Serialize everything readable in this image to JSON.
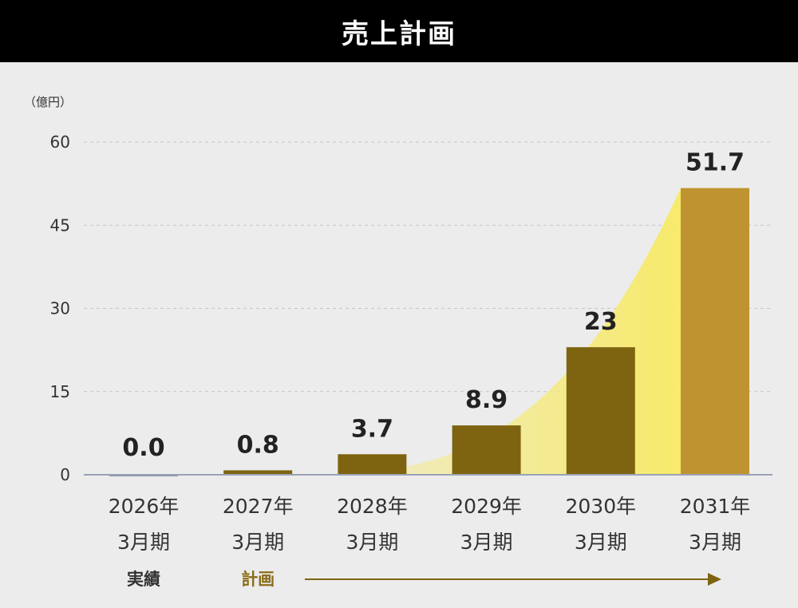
{
  "title": "売上計画",
  "chart_data": {
    "type": "bar",
    "unit_label": "（億円）",
    "categories": [
      [
        "2026年",
        "3月期"
      ],
      [
        "2027年",
        "3月期"
      ],
      [
        "2028年",
        "3月期"
      ],
      [
        "2029年",
        "3月期"
      ],
      [
        "2030年",
        "3月期"
      ],
      [
        "2031年",
        "3月期"
      ]
    ],
    "values": [
      0.0,
      0.8,
      3.7,
      8.9,
      23,
      51.7
    ],
    "value_labels": [
      "0.0",
      "0.8",
      "3.7",
      "8.9",
      "23",
      "51.7"
    ],
    "bar_colors": [
      "#8a93aa",
      "#7e6410",
      "#7e6410",
      "#7e6410",
      "#7e6410",
      "#bf9430"
    ],
    "ylim": [
      0,
      60
    ],
    "yticks": [
      0,
      15,
      30,
      45,
      60
    ],
    "grid": true,
    "status_labels": {
      "actual": "実績",
      "plan": "計画"
    },
    "colors": {
      "plan_text": "#8a6d1a",
      "arrow": "#7e6410",
      "growth_fill": "#f7ea6b"
    }
  }
}
